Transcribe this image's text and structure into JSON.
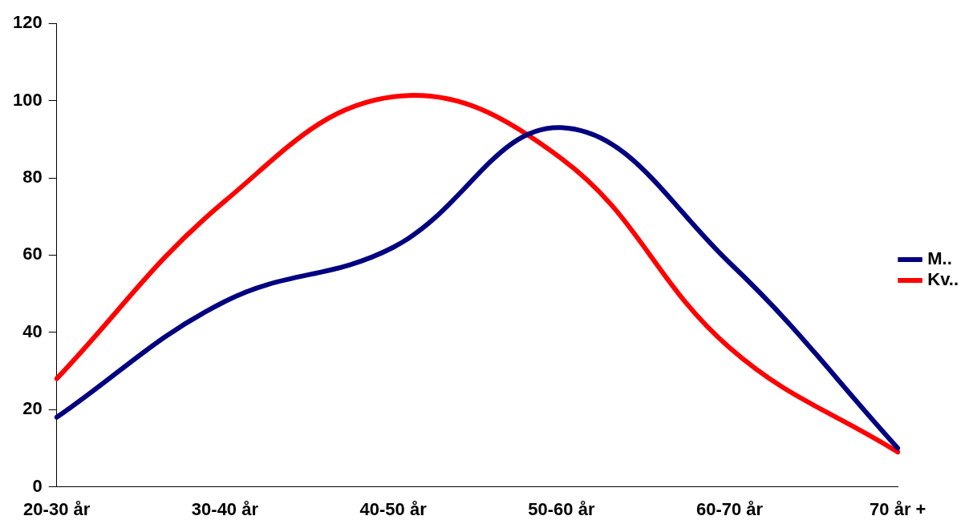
{
  "chart_data": {
    "type": "line",
    "categories": [
      "20-30 år",
      "30-40 år",
      "40-50 år",
      "50-60 år",
      "60-70 år",
      "70 år +"
    ],
    "series": [
      {
        "name": "M..",
        "color": "#000080",
        "values": [
          18,
          48,
          62,
          93,
          58,
          10
        ]
      },
      {
        "name": "Kv..",
        "color": "#ff0000",
        "values": [
          28,
          74,
          101,
          85,
          36,
          9
        ]
      }
    ],
    "ylim": [
      0,
      120
    ],
    "yticks": [
      0,
      20,
      40,
      60,
      80,
      100,
      120
    ],
    "grid": false,
    "legend": "right",
    "marker": "none",
    "line_style": "solid"
  }
}
